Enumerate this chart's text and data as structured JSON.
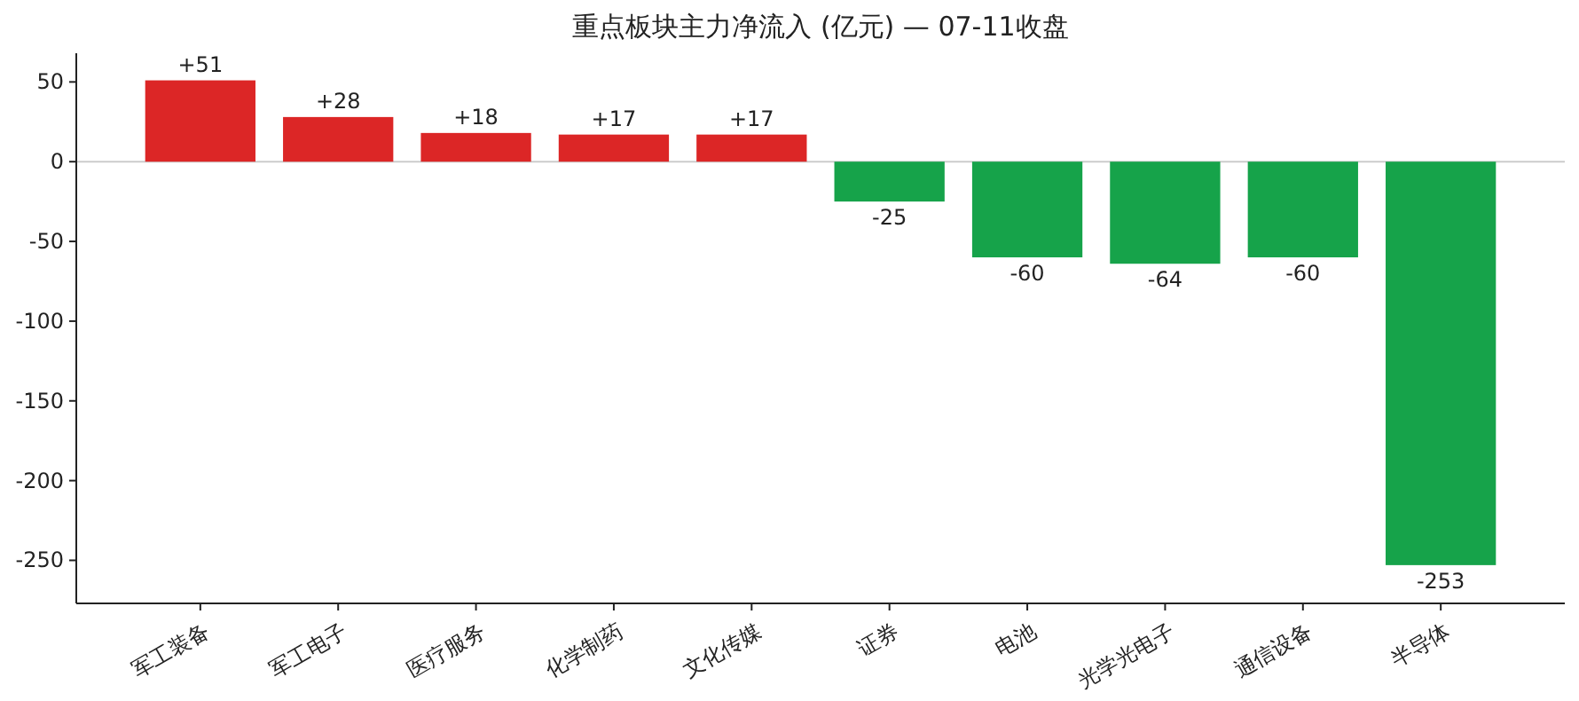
{
  "chart_data": {
    "type": "bar",
    "title": "重点板块主力净流入 (亿元) — 07-11收盘",
    "categories": [
      "军工装备",
      "军工电子",
      "医疗服务",
      "化学制药",
      "文化传媒",
      "证券",
      "电池",
      "光学光电子",
      "通信设备",
      "半导体"
    ],
    "values": [
      51,
      28,
      18,
      17,
      17,
      -25,
      -60,
      -64,
      -60,
      -253
    ],
    "value_labels": [
      "+51",
      "+28",
      "+18",
      "+17",
      "+17",
      "-25",
      "-60",
      "-64",
      "-60",
      "-253"
    ],
    "colors": [
      "#dc2626",
      "#dc2626",
      "#dc2626",
      "#dc2626",
      "#dc2626",
      "#16a34a",
      "#16a34a",
      "#16a34a",
      "#16a34a",
      "#16a34a"
    ],
    "ylim": [
      -277,
      68
    ],
    "yticks": [
      -250,
      -200,
      -150,
      -100,
      -50,
      0,
      50
    ],
    "ref_lines": [
      {
        "axis": "y",
        "value": 0,
        "color": "#cccccc"
      }
    ],
    "grid": false
  }
}
